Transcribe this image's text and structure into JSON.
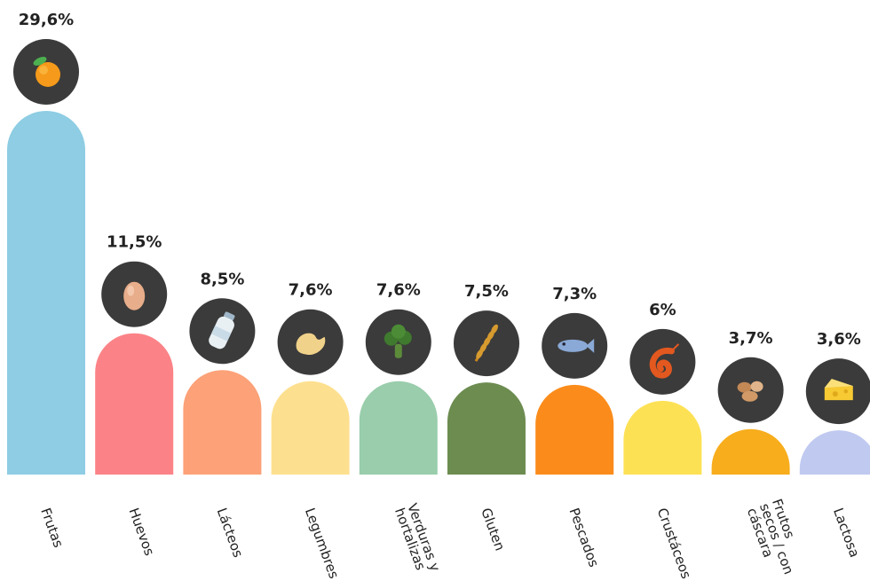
{
  "chart_data": {
    "type": "bar",
    "title": "",
    "xlabel": "",
    "ylabel": "",
    "ylim": [
      0,
      29.6
    ],
    "grid": false,
    "legend": "none",
    "categories": [
      "Frutas",
      "Huevos",
      "Lácteos",
      "Legumbres",
      "Verduras y hortalizas",
      "Gluten",
      "Pescados",
      "Crustáceos",
      "Frutos secos / con cáscara",
      "Lactosa"
    ],
    "category_lines": [
      [
        "Frutas"
      ],
      [
        "Huevos"
      ],
      [
        "Lácteos"
      ],
      [
        "Legumbres"
      ],
      [
        "Verduras y",
        "hortalizas"
      ],
      [
        "Gluten"
      ],
      [
        "Pescados"
      ],
      [
        "Crustáceos"
      ],
      [
        "Frutos",
        "secos / con",
        "cáscara"
      ],
      [
        "Lactosa"
      ]
    ],
    "values": [
      29.6,
      11.5,
      8.5,
      7.6,
      7.6,
      7.5,
      7.3,
      6,
      3.7,
      3.6
    ],
    "value_labels": [
      "29,6%",
      "11,5%",
      "8,5%",
      "7,6%",
      "7,6%",
      "7,5%",
      "7,3%",
      "6%",
      "3,7%",
      "3,6%"
    ],
    "colors": [
      "#8ecde3",
      "#fb8387",
      "#fca178",
      "#fde08f",
      "#99cdab",
      "#6c8c50",
      "#fb8c1b",
      "#fde155",
      "#f7ad1c",
      "#c0c9f0"
    ],
    "icons": [
      "orange-icon",
      "egg-icon",
      "milk-bottle-icon",
      "bean-icon",
      "broccoli-icon",
      "wheat-icon",
      "fish-icon",
      "shrimp-icon",
      "nuts-icon",
      "cheese-icon"
    ]
  }
}
